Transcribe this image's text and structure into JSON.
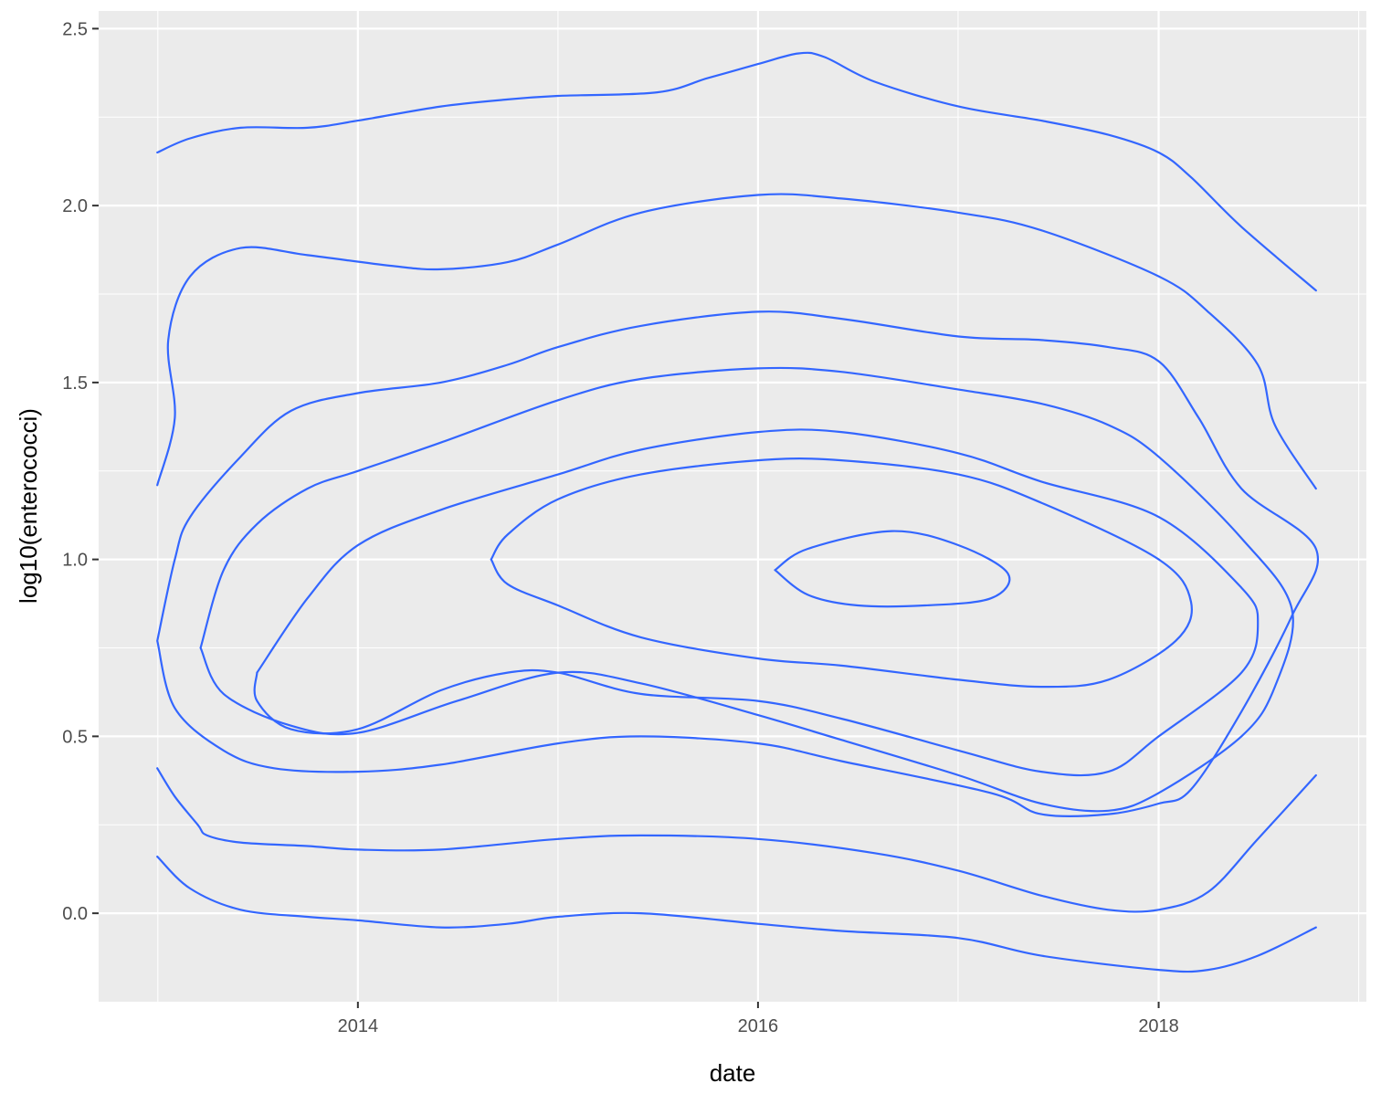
{
  "chart_data": {
    "type": "line",
    "subtype": "2d-density-contour",
    "title": "",
    "xlabel": "date",
    "ylabel": "log10(enterococci)",
    "xlim": [
      "2012-09-15",
      "2019-01-15"
    ],
    "ylim": [
      -0.25,
      2.55
    ],
    "x_ticks": [
      {
        "value": "2014-01-01",
        "label": "2014"
      },
      {
        "value": "2016-01-01",
        "label": "2016"
      },
      {
        "value": "2018-01-01",
        "label": "2018"
      }
    ],
    "y_ticks": [
      {
        "value": 0.0,
        "label": "0.0"
      },
      {
        "value": 0.5,
        "label": "0.5"
      },
      {
        "value": 1.0,
        "label": "1.0"
      },
      {
        "value": 1.5,
        "label": "1.5"
      },
      {
        "value": 2.0,
        "label": "2.0"
      },
      {
        "value": 2.5,
        "label": "2.5"
      }
    ],
    "grid": true,
    "colors": {
      "panel": "#ebebeb",
      "grid": "#ffffff",
      "line": "#3366ff"
    },
    "series": [
      {
        "points": [
          [
            "2012-12-31",
            2.15
          ],
          [
            "2013-03-01",
            2.19
          ],
          [
            "2013-06-01",
            2.22
          ],
          [
            "2013-10-01",
            2.22
          ],
          [
            "2014-01-01",
            2.24
          ],
          [
            "2014-06-01",
            2.28
          ],
          [
            "2014-10-01",
            2.3
          ],
          [
            "2015-01-01",
            2.31
          ],
          [
            "2015-07-01",
            2.32
          ],
          [
            "2015-10-01",
            2.36
          ],
          [
            "2016-01-01",
            2.4
          ],
          [
            "2016-03-15",
            2.43
          ],
          [
            "2016-05-01",
            2.42
          ],
          [
            "2016-08-01",
            2.35
          ],
          [
            "2017-01-01",
            2.28
          ],
          [
            "2017-06-01",
            2.24
          ],
          [
            "2017-10-01",
            2.2
          ],
          [
            "2018-01-01",
            2.15
          ],
          [
            "2018-03-01",
            2.08
          ],
          [
            "2018-06-01",
            1.94
          ],
          [
            "2018-10-15",
            1.76
          ]
        ]
      },
      {
        "points": [
          [
            "2012-12-31",
            1.21
          ],
          [
            "2013-02-01",
            1.4
          ],
          [
            "2013-01-20",
            1.62
          ],
          [
            "2013-03-01",
            1.8
          ],
          [
            "2013-06-01",
            1.88
          ],
          [
            "2013-10-01",
            1.86
          ],
          [
            "2014-03-01",
            1.83
          ],
          [
            "2014-06-01",
            1.82
          ],
          [
            "2014-10-01",
            1.84
          ],
          [
            "2015-01-01",
            1.89
          ],
          [
            "2015-06-01",
            1.98
          ],
          [
            "2016-01-01",
            2.03
          ],
          [
            "2016-06-01",
            2.02
          ],
          [
            "2017-01-01",
            1.98
          ],
          [
            "2017-06-01",
            1.93
          ],
          [
            "2018-01-01",
            1.8
          ],
          [
            "2018-04-01",
            1.7
          ],
          [
            "2018-07-01",
            1.55
          ],
          [
            "2018-08-01",
            1.38
          ],
          [
            "2018-10-15",
            1.2
          ]
        ]
      },
      {
        "points": [
          [
            "2012-12-31",
            0.41
          ],
          [
            "2013-02-01",
            0.33
          ],
          [
            "2013-03-15",
            0.25
          ],
          [
            "2013-04-01",
            0.22
          ],
          [
            "2013-06-01",
            0.2
          ],
          [
            "2013-10-01",
            0.19
          ],
          [
            "2014-01-01",
            0.18
          ],
          [
            "2014-06-01",
            0.18
          ],
          [
            "2015-01-01",
            0.21
          ],
          [
            "2015-06-01",
            0.22
          ],
          [
            "2016-01-01",
            0.21
          ],
          [
            "2016-08-01",
            0.17
          ],
          [
            "2017-01-01",
            0.12
          ],
          [
            "2017-06-01",
            0.05
          ],
          [
            "2017-10-01",
            0.01
          ],
          [
            "2018-01-01",
            0.01
          ],
          [
            "2018-04-01",
            0.06
          ],
          [
            "2018-07-01",
            0.21
          ],
          [
            "2018-10-15",
            0.39
          ]
        ]
      },
      {
        "points": [
          [
            "2012-12-31",
            0.16
          ],
          [
            "2013-03-01",
            0.07
          ],
          [
            "2013-06-01",
            0.01
          ],
          [
            "2013-10-01",
            -0.01
          ],
          [
            "2014-01-01",
            -0.02
          ],
          [
            "2014-06-01",
            -0.04
          ],
          [
            "2014-10-01",
            -0.03
          ],
          [
            "2015-01-01",
            -0.01
          ],
          [
            "2015-06-01",
            0.0
          ],
          [
            "2016-01-01",
            -0.03
          ],
          [
            "2016-06-01",
            -0.05
          ],
          [
            "2017-01-01",
            -0.07
          ],
          [
            "2017-06-01",
            -0.12
          ],
          [
            "2018-01-01",
            -0.16
          ],
          [
            "2018-04-01",
            -0.16
          ],
          [
            "2018-07-01",
            -0.12
          ],
          [
            "2018-10-15",
            -0.04
          ]
        ]
      },
      {
        "points": [
          [
            "2012-12-31",
            0.77
          ],
          [
            "2013-02-01",
            1.0
          ],
          [
            "2013-03-01",
            1.12
          ],
          [
            "2013-06-01",
            1.29
          ],
          [
            "2013-09-01",
            1.42
          ],
          [
            "2014-01-01",
            1.47
          ],
          [
            "2014-06-01",
            1.5
          ],
          [
            "2014-10-01",
            1.55
          ],
          [
            "2015-01-01",
            1.6
          ],
          [
            "2015-06-01",
            1.66
          ],
          [
            "2016-01-01",
            1.7
          ],
          [
            "2016-06-01",
            1.68
          ],
          [
            "2017-01-01",
            1.63
          ],
          [
            "2017-06-01",
            1.62
          ],
          [
            "2017-10-01",
            1.6
          ],
          [
            "2018-01-01",
            1.56
          ],
          [
            "2018-03-15",
            1.4
          ],
          [
            "2018-06-01",
            1.2
          ],
          [
            "2018-10-15",
            1.03
          ],
          [
            "2018-09-01",
            0.84
          ],
          [
            "2018-06-01",
            0.57
          ],
          [
            "2018-03-01",
            0.35
          ],
          [
            "2018-01-01",
            0.31
          ],
          [
            "2017-10-01",
            0.28
          ],
          [
            "2017-06-01",
            0.28
          ],
          [
            "2017-03-01",
            0.34
          ],
          [
            "2016-06-01",
            0.43
          ],
          [
            "2016-01-01",
            0.48
          ],
          [
            "2015-06-01",
            0.5
          ],
          [
            "2015-01-01",
            0.48
          ],
          [
            "2014-06-01",
            0.42
          ],
          [
            "2014-01-01",
            0.4
          ],
          [
            "2013-08-01",
            0.41
          ],
          [
            "2013-05-01",
            0.46
          ],
          [
            "2013-02-01",
            0.58
          ],
          [
            "2012-12-31",
            0.77
          ]
        ]
      },
      {
        "points": [
          [
            "2013-03-20",
            0.75
          ],
          [
            "2013-05-01",
            0.97
          ],
          [
            "2013-07-01",
            1.1
          ],
          [
            "2013-10-01",
            1.2
          ],
          [
            "2014-01-01",
            1.25
          ],
          [
            "2014-06-01",
            1.33
          ],
          [
            "2015-01-01",
            1.45
          ],
          [
            "2015-06-01",
            1.51
          ],
          [
            "2016-01-01",
            1.54
          ],
          [
            "2016-06-01",
            1.53
          ],
          [
            "2017-01-01",
            1.48
          ],
          [
            "2017-06-01",
            1.44
          ],
          [
            "2017-10-01",
            1.38
          ],
          [
            "2018-01-01",
            1.29
          ],
          [
            "2018-06-01",
            1.06
          ],
          [
            "2018-09-01",
            0.86
          ],
          [
            "2018-08-01",
            0.64
          ],
          [
            "2018-06-01",
            0.5
          ],
          [
            "2018-01-01",
            0.34
          ],
          [
            "2017-10-01",
            0.29
          ],
          [
            "2017-06-01",
            0.31
          ],
          [
            "2017-01-01",
            0.39
          ],
          [
            "2016-06-01",
            0.49
          ],
          [
            "2016-01-01",
            0.56
          ],
          [
            "2015-06-01",
            0.65
          ],
          [
            "2015-01-01",
            0.68
          ],
          [
            "2014-07-01",
            0.6
          ],
          [
            "2014-01-01",
            0.51
          ],
          [
            "2013-09-01",
            0.53
          ],
          [
            "2013-05-01",
            0.62
          ],
          [
            "2013-03-20",
            0.75
          ]
        ]
      },
      {
        "points": [
          [
            "2013-07-01",
            0.68
          ],
          [
            "2013-10-01",
            0.89
          ],
          [
            "2014-01-01",
            1.04
          ],
          [
            "2014-06-01",
            1.14
          ],
          [
            "2015-01-01",
            1.24
          ],
          [
            "2015-06-01",
            1.31
          ],
          [
            "2016-01-01",
            1.36
          ],
          [
            "2016-06-01",
            1.36
          ],
          [
            "2017-01-01",
            1.3
          ],
          [
            "2017-06-01",
            1.22
          ],
          [
            "2018-01-01",
            1.12
          ],
          [
            "2018-06-01",
            0.92
          ],
          [
            "2018-07-01",
            0.82
          ],
          [
            "2018-06-01",
            0.68
          ],
          [
            "2018-01-01",
            0.5
          ],
          [
            "2017-10-01",
            0.4
          ],
          [
            "2017-06-01",
            0.4
          ],
          [
            "2017-01-01",
            0.46
          ],
          [
            "2016-06-01",
            0.55
          ],
          [
            "2016-01-01",
            0.6
          ],
          [
            "2015-06-01",
            0.62
          ],
          [
            "2015-01-01",
            0.68
          ],
          [
            "2014-10-01",
            0.68
          ],
          [
            "2014-06-01",
            0.63
          ],
          [
            "2014-01-01",
            0.52
          ],
          [
            "2013-09-01",
            0.52
          ],
          [
            "2013-07-01",
            0.6
          ],
          [
            "2013-07-01",
            0.68
          ]
        ]
      },
      {
        "points": [
          [
            "2014-09-01",
            1.0
          ],
          [
            "2014-10-01",
            1.07
          ],
          [
            "2015-01-01",
            1.17
          ],
          [
            "2015-06-01",
            1.24
          ],
          [
            "2016-01-01",
            1.28
          ],
          [
            "2016-06-01",
            1.28
          ],
          [
            "2017-01-01",
            1.24
          ],
          [
            "2017-06-01",
            1.16
          ],
          [
            "2018-01-01",
            1.0
          ],
          [
            "2018-03-01",
            0.88
          ],
          [
            "2018-02-01",
            0.77
          ],
          [
            "2017-10-01",
            0.66
          ],
          [
            "2017-06-01",
            0.64
          ],
          [
            "2017-01-01",
            0.66
          ],
          [
            "2016-06-01",
            0.7
          ],
          [
            "2016-01-01",
            0.72
          ],
          [
            "2015-06-01",
            0.78
          ],
          [
            "2015-01-01",
            0.87
          ],
          [
            "2014-10-01",
            0.93
          ],
          [
            "2014-09-01",
            1.0
          ]
        ]
      },
      {
        "points": [
          [
            "2016-02-01",
            0.97
          ],
          [
            "2016-04-01",
            1.03
          ],
          [
            "2016-09-01",
            1.08
          ],
          [
            "2017-01-01",
            1.04
          ],
          [
            "2017-04-01",
            0.96
          ],
          [
            "2017-03-01",
            0.89
          ],
          [
            "2016-11-01",
            0.87
          ],
          [
            "2016-07-01",
            0.87
          ],
          [
            "2016-04-01",
            0.9
          ],
          [
            "2016-02-01",
            0.97
          ]
        ]
      }
    ]
  }
}
